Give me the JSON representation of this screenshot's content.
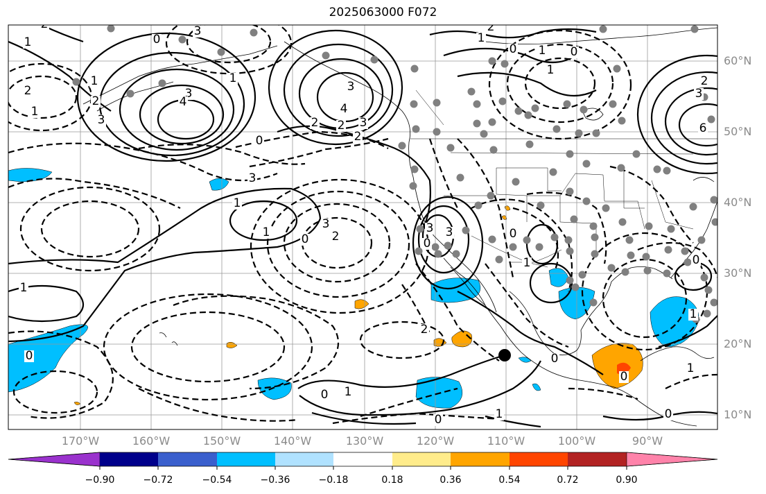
{
  "title": "2025063000 F072",
  "lat_labels": [
    "60°N",
    "50°N",
    "40°N",
    "30°N",
    "20°N",
    "10°N"
  ],
  "lon_labels": [
    "170°W",
    "160°W",
    "150°W",
    "140°W",
    "130°W",
    "120°W",
    "110°W",
    "100°W",
    "90°W"
  ],
  "contour_labels": [
    "2",
    "3",
    "0",
    "1",
    "1",
    "3",
    "4",
    "2",
    "1",
    "1",
    "2",
    "3",
    "0",
    "2",
    "2",
    "3",
    "3",
    "4",
    "6",
    "2",
    "3",
    "0",
    "1",
    "1",
    "0",
    "1",
    "2",
    "2",
    "3",
    "1",
    "3",
    "2",
    "0",
    "1",
    "3",
    "3",
    "0",
    "0",
    "1",
    "1",
    "0",
    "0",
    "1",
    "2",
    "0",
    "1",
    "0",
    "0",
    "1",
    "1",
    "0",
    "0"
  ],
  "colorbar": {
    "ticks": [
      "−0.90",
      "−0.72",
      "−0.54",
      "−0.36",
      "−0.18",
      "0.18",
      "0.36",
      "0.54",
      "0.72",
      "0.90"
    ],
    "colors": [
      "#9a32cd",
      "#00008b",
      "#3a5fcd",
      "#00bfff",
      "#b0e2ff",
      "#ffffff",
      "#ffec8b",
      "#ffa500",
      "#ff4500",
      "#b22222",
      "#ff83aa"
    ]
  },
  "colors": {
    "grid": "#999999",
    "contour": "#000000",
    "negative_fill": "#00bfff",
    "positive_fill": "#ffa500",
    "strong_positive_fill": "#ff4500",
    "station_dot": "#808080"
  }
}
